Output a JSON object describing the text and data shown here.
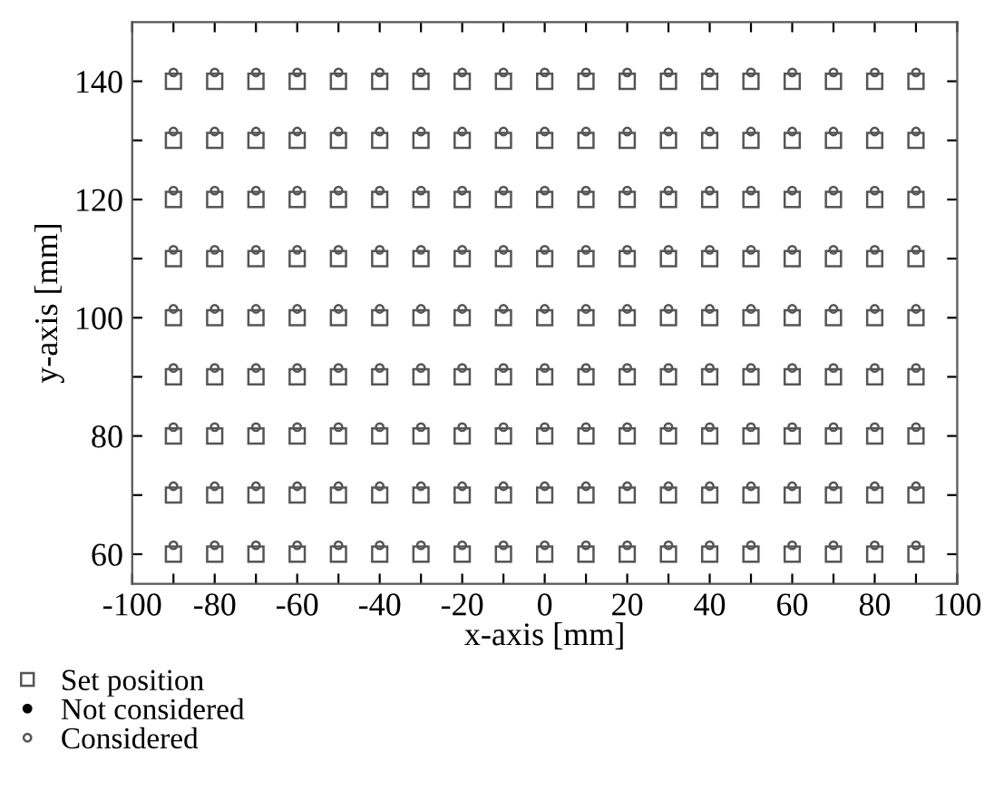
{
  "chart_data": {
    "type": "scatter",
    "xlabel": "x-axis [mm]",
    "ylabel": "y-axis [mm]",
    "xlim": [
      -100,
      100
    ],
    "ylim": [
      55,
      150
    ],
    "xticks": [
      -100,
      {
        "value": -90,
        "label": null
      },
      -80,
      {
        "value": -70,
        "label": null
      },
      -60,
      {
        "value": -50,
        "label": null
      },
      -40,
      {
        "value": -30,
        "label": null
      },
      -20,
      {
        "value": -10,
        "label": null
      },
      0,
      {
        "value": 10,
        "label": null
      },
      20,
      {
        "value": 30,
        "label": null
      },
      40,
      {
        "value": 50,
        "label": null
      },
      60,
      {
        "value": 70,
        "label": null
      },
      80,
      {
        "value": 90,
        "label": null
      },
      100
    ],
    "yticks": [
      60,
      {
        "value": 70,
        "label": null
      },
      80,
      {
        "value": 90,
        "label": null
      },
      100,
      {
        "value": 110,
        "label": null
      },
      120,
      {
        "value": 130,
        "label": null
      },
      140
    ],
    "grid": false,
    "legend": "bottom left",
    "series": [
      {
        "name": "Set position",
        "color": "#555555",
        "marker": "square",
        "x": [
          -90,
          -80,
          -70,
          -60,
          -50,
          -40,
          -30,
          -20,
          -10,
          0,
          10,
          20,
          30,
          40,
          50,
          60,
          70,
          80,
          90,
          -90,
          -80,
          -70,
          -60,
          -50,
          -40,
          -30,
          -20,
          -10,
          0,
          10,
          20,
          30,
          40,
          50,
          60,
          70,
          80,
          90,
          -90,
          -80,
          -70,
          -60,
          -50,
          -40,
          -30,
          -20,
          -10,
          0,
          10,
          20,
          30,
          40,
          50,
          60,
          70,
          80,
          90,
          -90,
          -80,
          -70,
          -60,
          -50,
          -40,
          -30,
          -20,
          -10,
          0,
          10,
          20,
          30,
          40,
          50,
          60,
          70,
          80,
          90,
          -90,
          -80,
          -70,
          -60,
          -50,
          -40,
          -30,
          -20,
          -10,
          0,
          10,
          20,
          30,
          40,
          50,
          60,
          70,
          80,
          90,
          -90,
          -80,
          -70,
          -60,
          -50,
          -40,
          -30,
          -20,
          -10,
          0,
          10,
          20,
          30,
          40,
          50,
          60,
          70,
          80,
          90,
          -90,
          -80,
          -70,
          -60,
          -50,
          -40,
          -30,
          -20,
          -10,
          0,
          10,
          20,
          30,
          40,
          50,
          60,
          70,
          80,
          90,
          -90,
          -80,
          -70,
          -60,
          -50,
          -40,
          -30,
          -20,
          -10,
          0,
          10,
          20,
          30,
          40,
          50,
          60,
          70,
          80,
          90,
          -90,
          -80,
          -70,
          -60,
          -50,
          -40,
          -30,
          -20,
          -10,
          0,
          10,
          20,
          30,
          40,
          50,
          60,
          70,
          80,
          90
        ],
        "values": [
          60,
          60,
          60,
          60,
          60,
          60,
          60,
          60,
          60,
          60,
          60,
          60,
          60,
          60,
          60,
          60,
          60,
          60,
          60,
          70,
          70,
          70,
          70,
          70,
          70,
          70,
          70,
          70,
          70,
          70,
          70,
          70,
          70,
          70,
          70,
          70,
          70,
          70,
          80,
          80,
          80,
          80,
          80,
          80,
          80,
          80,
          80,
          80,
          80,
          80,
          80,
          80,
          80,
          80,
          80,
          80,
          80,
          90,
          90,
          90,
          90,
          90,
          90,
          90,
          90,
          90,
          90,
          90,
          90,
          90,
          90,
          90,
          90,
          90,
          90,
          90,
          100,
          100,
          100,
          100,
          100,
          100,
          100,
          100,
          100,
          100,
          100,
          100,
          100,
          100,
          100,
          100,
          100,
          100,
          100,
          110,
          110,
          110,
          110,
          110,
          110,
          110,
          110,
          110,
          110,
          110,
          110,
          110,
          110,
          110,
          110,
          110,
          110,
          110,
          120,
          120,
          120,
          120,
          120,
          120,
          120,
          120,
          120,
          120,
          120,
          120,
          120,
          120,
          120,
          120,
          120,
          120,
          120,
          130,
          130,
          130,
          130,
          130,
          130,
          130,
          130,
          130,
          130,
          130,
          130,
          130,
          130,
          130,
          130,
          130,
          130,
          130,
          140,
          140,
          140,
          140,
          140,
          140,
          140,
          140,
          140,
          140,
          140,
          140,
          140,
          140,
          140,
          140,
          140,
          140,
          140
        ]
      },
      {
        "name": "Not considered",
        "color": "#000000",
        "marker": "dot"
      },
      {
        "name": "Considered",
        "color": "#555555",
        "marker": "circle",
        "x": [
          -90,
          -80,
          -70,
          -60,
          -50,
          -40,
          -30,
          -20,
          -10,
          0,
          10,
          20,
          30,
          40,
          50,
          60,
          70,
          80,
          90,
          -90,
          -80,
          -70,
          -60,
          -50,
          -40,
          -30,
          -20,
          -10,
          0,
          10,
          20,
          30,
          40,
          50,
          60,
          70,
          80,
          90,
          -90,
          -80,
          -70,
          -60,
          -50,
          -40,
          -30,
          -20,
          -10,
          0,
          10,
          20,
          30,
          40,
          50,
          60,
          70,
          80,
          90,
          -90,
          -80,
          -70,
          -60,
          -50,
          -40,
          -30,
          -20,
          -10,
          0,
          10,
          20,
          30,
          40,
          50,
          60,
          70,
          80,
          90,
          -90,
          -80,
          -70,
          -60,
          -50,
          -40,
          -30,
          -20,
          -10,
          0,
          10,
          20,
          30,
          40,
          50,
          60,
          70,
          80,
          90,
          -90,
          -80,
          -70,
          -60,
          -50,
          -40,
          -30,
          -20,
          -10,
          0,
          10,
          20,
          30,
          40,
          50,
          60,
          70,
          80,
          90,
          -90,
          -80,
          -70,
          -60,
          -50,
          -40,
          -30,
          -20,
          -10,
          0,
          10,
          20,
          30,
          40,
          50,
          60,
          70,
          80,
          90,
          -90,
          -80,
          -70,
          -60,
          -50,
          -40,
          -30,
          -20,
          -10,
          0,
          10,
          20,
          30,
          40,
          50,
          60,
          70,
          80,
          90,
          -90,
          -80,
          -70,
          -60,
          -50,
          -40,
          -30,
          -20,
          -10,
          0,
          10,
          20,
          30,
          40,
          50,
          60,
          70,
          80,
          90
        ],
        "values": [
          61.5,
          61.5,
          61.5,
          61.5,
          61.5,
          61.5,
          61.5,
          61.5,
          61.5,
          61.5,
          61.5,
          61.5,
          61.5,
          61.5,
          61.5,
          61.5,
          61.5,
          61.5,
          61.5,
          71.5,
          71.5,
          71.5,
          71.5,
          71.5,
          71.5,
          71.5,
          71.5,
          71.5,
          71.5,
          71.5,
          71.5,
          71.5,
          71.5,
          71.5,
          71.5,
          71.5,
          71.5,
          71.5,
          81.5,
          81.5,
          81.5,
          81.5,
          81.5,
          81.5,
          81.5,
          81.5,
          81.5,
          81.5,
          81.5,
          81.5,
          81.5,
          81.5,
          81.5,
          81.5,
          81.5,
          81.5,
          81.5,
          91.5,
          91.5,
          91.5,
          91.5,
          91.5,
          91.5,
          91.5,
          91.5,
          91.5,
          91.5,
          91.5,
          91.5,
          91.5,
          91.5,
          91.5,
          91.5,
          91.5,
          91.5,
          91.5,
          101.5,
          101.5,
          101.5,
          101.5,
          101.5,
          101.5,
          101.5,
          101.5,
          101.5,
          101.5,
          101.5,
          101.5,
          101.5,
          101.5,
          101.5,
          101.5,
          101.5,
          101.5,
          101.5,
          111.5,
          111.5,
          111.5,
          111.5,
          111.5,
          111.5,
          111.5,
          111.5,
          111.5,
          111.5,
          111.5,
          111.5,
          111.5,
          111.5,
          111.5,
          111.5,
          111.5,
          111.5,
          111.5,
          121.5,
          121.5,
          121.5,
          121.5,
          121.5,
          121.5,
          121.5,
          121.5,
          121.5,
          121.5,
          121.5,
          121.5,
          121.5,
          121.5,
          121.5,
          121.5,
          121.5,
          121.5,
          121.5,
          131.5,
          131.5,
          131.5,
          131.5,
          131.5,
          131.5,
          131.5,
          131.5,
          131.5,
          131.5,
          131.5,
          131.5,
          131.5,
          131.5,
          131.5,
          131.5,
          131.5,
          131.5,
          131.5,
          141.5,
          141.5,
          141.5,
          141.5,
          141.5,
          141.5,
          141.5,
          141.5,
          141.5,
          141.5,
          141.5,
          141.5,
          141.5,
          141.5,
          141.5,
          141.5,
          141.5,
          141.5,
          141.5
        ]
      }
    ]
  }
}
